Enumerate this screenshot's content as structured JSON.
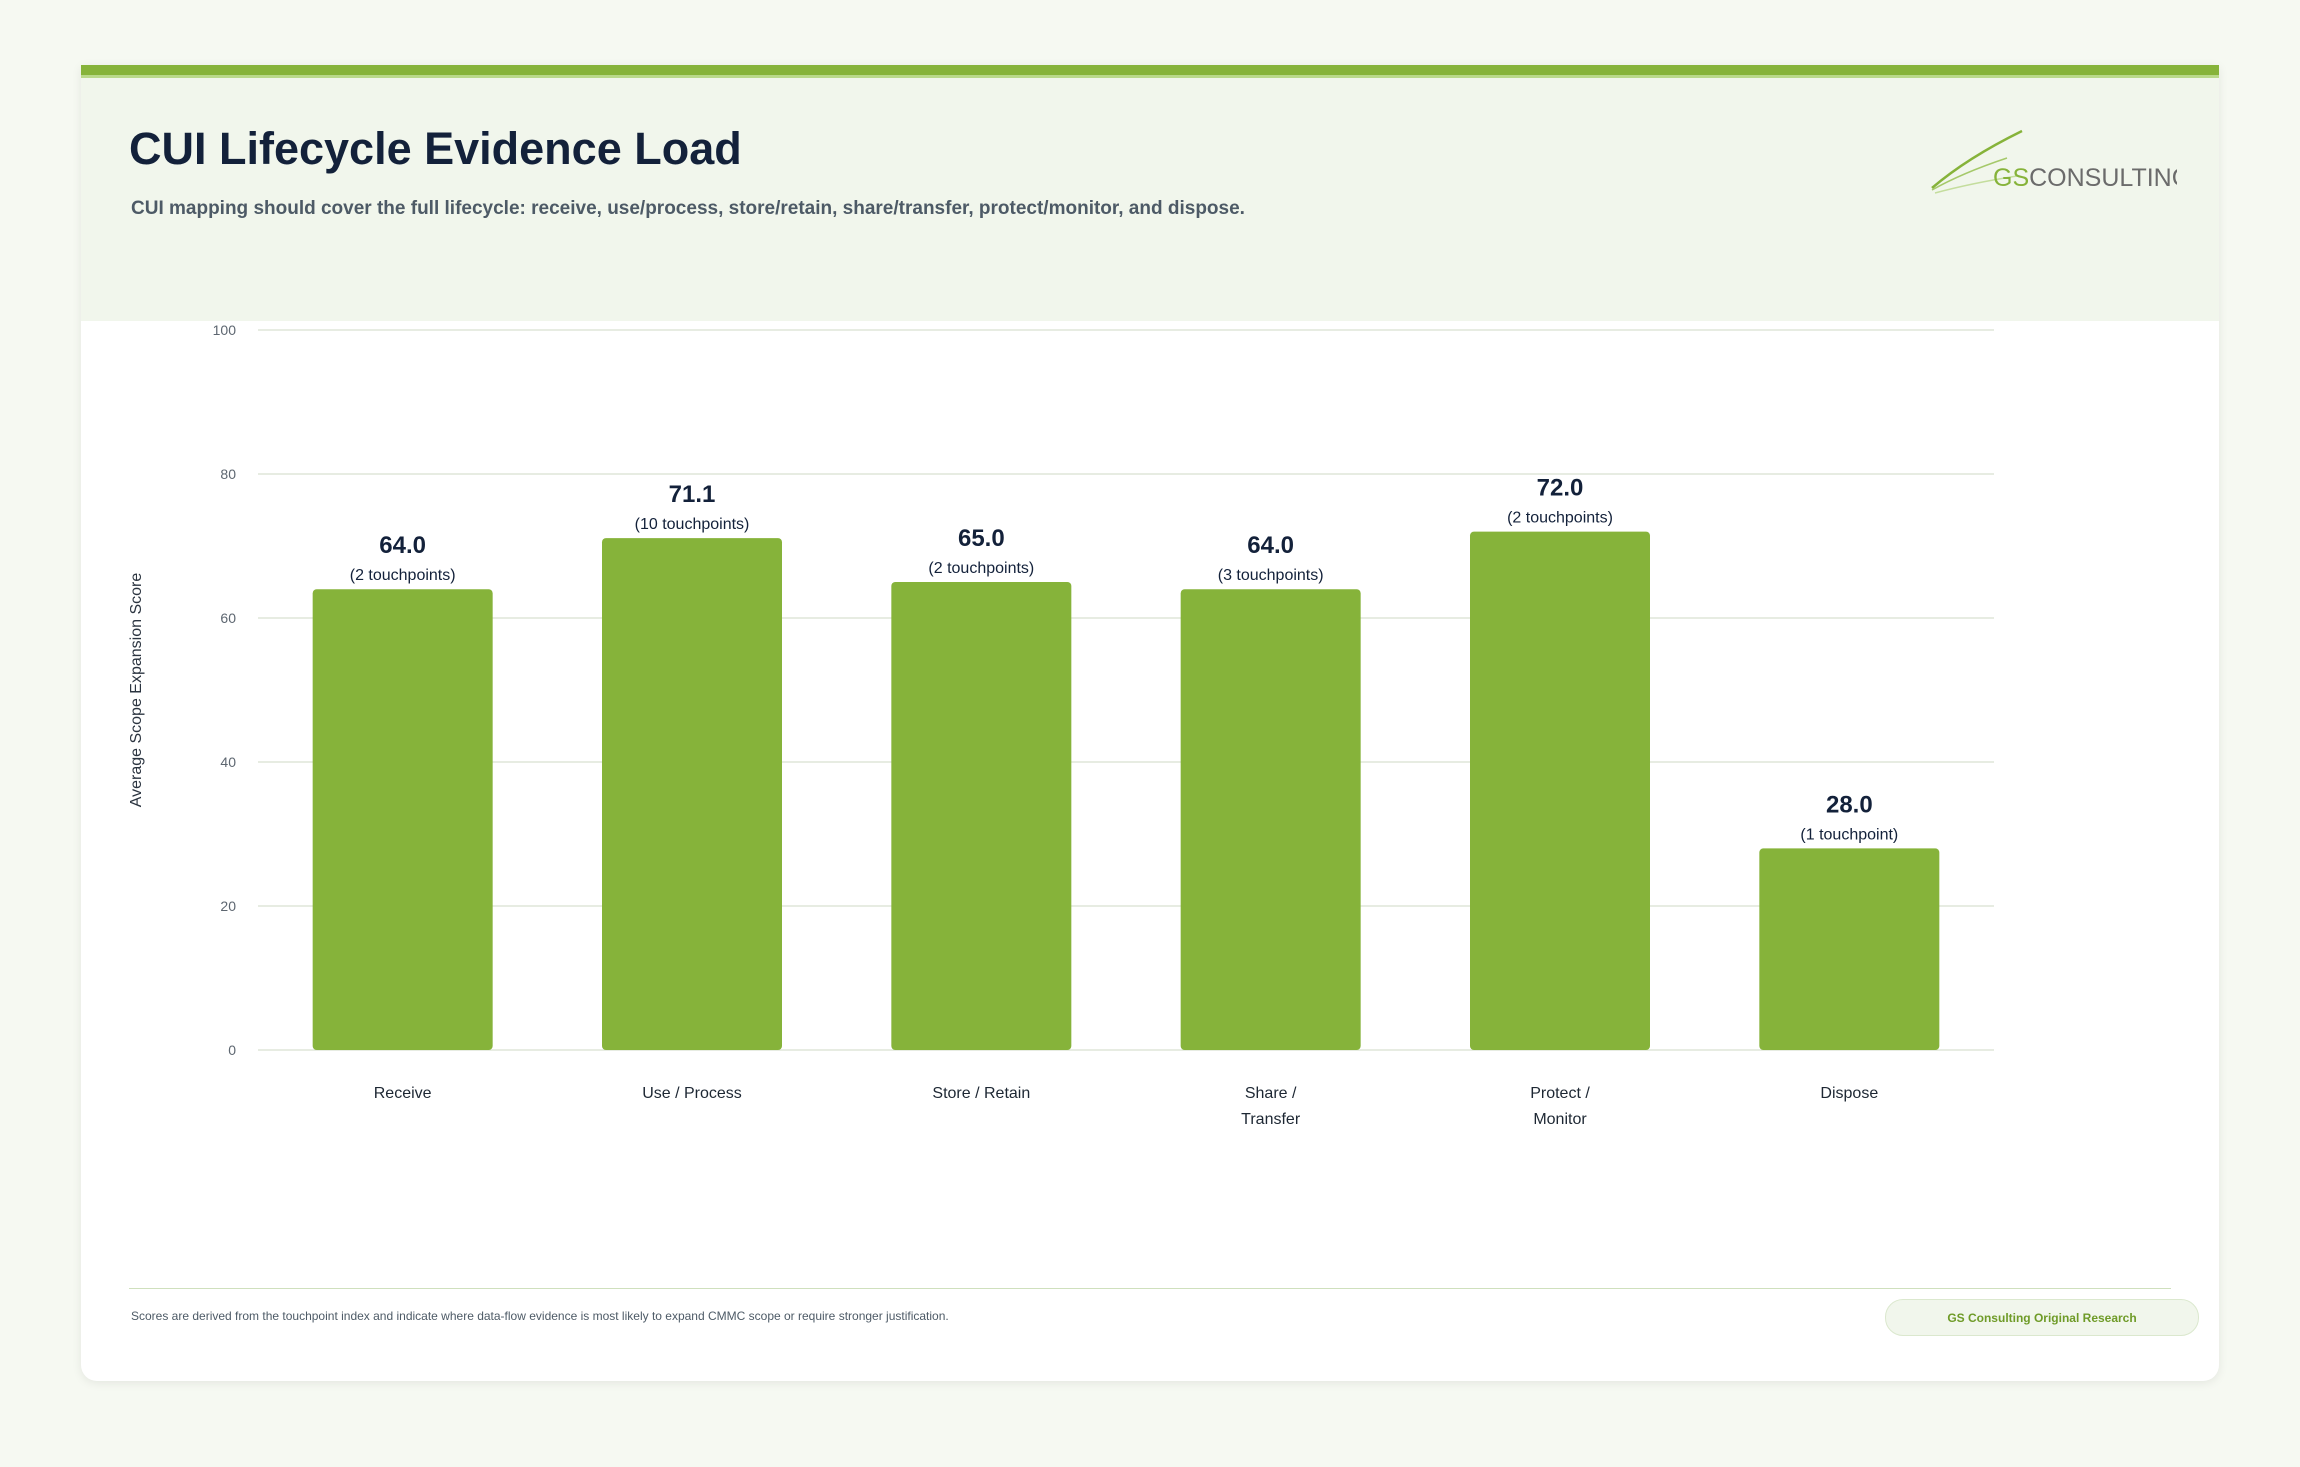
{
  "header": {
    "title": "CUI Lifecycle Evidence Load",
    "subtitle": "CUI mapping should cover the full lifecycle: receive, use/process, store/retain, share/transfer, protect/monitor, and dispose.",
    "logo_text_gs": "GS",
    "logo_text_rest": "CONSULTING"
  },
  "colors": {
    "bar": "#86b33a",
    "accent": "#86b33a",
    "title": "#13213a",
    "grid": "#dfe6d8"
  },
  "chart_data": {
    "type": "bar",
    "title": "",
    "xlabel": "",
    "ylabel": "Average Scope Expansion Score",
    "ylim": [
      0,
      100
    ],
    "yticks": [
      0,
      20,
      40,
      60,
      80,
      100
    ],
    "grid": true,
    "categories": [
      "Receive",
      "Use / Process",
      "Store / Retain",
      "Share / Transfer",
      "Protect / Monitor",
      "Dispose"
    ],
    "category_lines": [
      [
        "Receive"
      ],
      [
        "Use / Process"
      ],
      [
        "Store / Retain"
      ],
      [
        "Share /",
        "Transfer"
      ],
      [
        "Protect /",
        "Monitor"
      ],
      [
        "Dispose"
      ]
    ],
    "values": [
      64.0,
      71.1,
      65.0,
      64.0,
      72.0,
      28.0
    ],
    "value_labels": [
      "64.0",
      "71.1",
      "65.0",
      "64.0",
      "72.0",
      "28.0"
    ],
    "sublabels": [
      "(2 touchpoints)",
      "(10 touchpoints)",
      "(2 touchpoints)",
      "(3 touchpoints)",
      "(2 touchpoints)",
      "(1 touchpoint)"
    ]
  },
  "footer": {
    "note": "Scores are derived from the touchpoint index and indicate where data-flow evidence is most likely to expand CMMC scope or require stronger justification.",
    "badge": "GS Consulting Original Research"
  }
}
